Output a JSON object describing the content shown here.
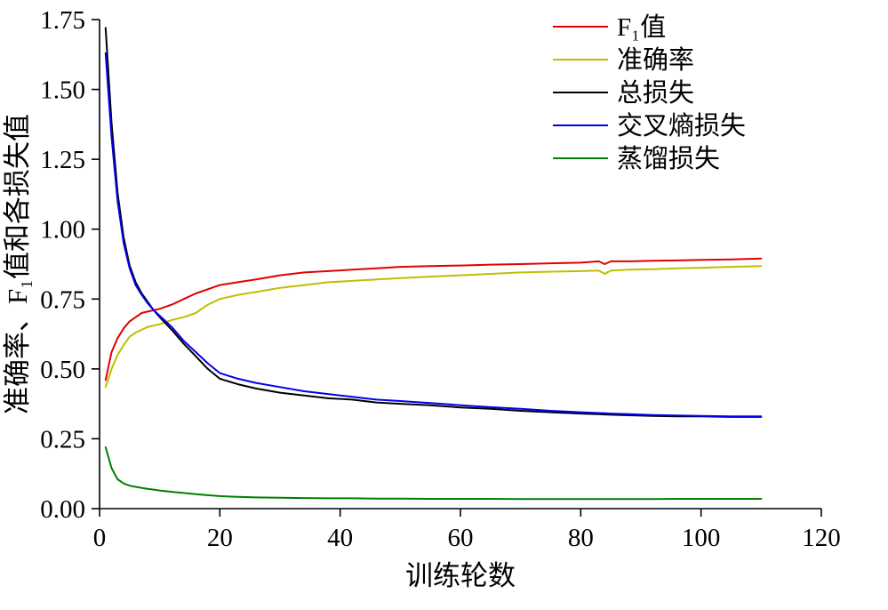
{
  "chart_data": {
    "type": "line",
    "title": "",
    "xlabel": "训练轮数",
    "ylabel": "准确率、F₁值和各损失值",
    "xlim": [
      0,
      120
    ],
    "ylim": [
      0,
      1.75
    ],
    "x_ticks": [
      0,
      20,
      40,
      60,
      80,
      100,
      120
    ],
    "y_ticks": [
      0.0,
      0.25,
      0.5,
      0.75,
      1.0,
      1.25,
      1.5,
      1.75
    ],
    "grid": false,
    "legend_position": "upper right, no frame",
    "x": [
      1,
      2,
      3,
      4,
      5,
      6,
      7,
      8,
      9,
      10,
      12,
      14,
      16,
      18,
      20,
      23,
      26,
      30,
      34,
      38,
      42,
      46,
      50,
      55,
      60,
      65,
      70,
      75,
      80,
      83,
      84,
      85,
      88,
      92,
      96,
      100,
      105,
      110
    ],
    "series": [
      {
        "id": "f1",
        "name": "F₁值",
        "color": "#e00000",
        "values": [
          0.46,
          0.56,
          0.61,
          0.645,
          0.67,
          0.685,
          0.7,
          0.705,
          0.71,
          0.715,
          0.73,
          0.75,
          0.77,
          0.785,
          0.8,
          0.81,
          0.82,
          0.835,
          0.845,
          0.85,
          0.855,
          0.86,
          0.865,
          0.868,
          0.87,
          0.873,
          0.875,
          0.878,
          0.88,
          0.885,
          0.875,
          0.885,
          0.885,
          0.887,
          0.888,
          0.89,
          0.892,
          0.895
        ]
      },
      {
        "id": "accuracy",
        "name": "准确率",
        "color": "#bfbf00",
        "values": [
          0.435,
          0.5,
          0.55,
          0.585,
          0.615,
          0.63,
          0.64,
          0.65,
          0.655,
          0.66,
          0.675,
          0.685,
          0.7,
          0.73,
          0.75,
          0.765,
          0.775,
          0.79,
          0.8,
          0.81,
          0.815,
          0.82,
          0.825,
          0.83,
          0.835,
          0.84,
          0.845,
          0.848,
          0.85,
          0.852,
          0.84,
          0.852,
          0.855,
          0.857,
          0.86,
          0.862,
          0.865,
          0.868
        ]
      },
      {
        "id": "total-loss",
        "name": "总损失",
        "color": "#000000",
        "values": [
          1.72,
          1.38,
          1.13,
          0.97,
          0.87,
          0.81,
          0.77,
          0.74,
          0.71,
          0.685,
          0.64,
          0.59,
          0.545,
          0.5,
          0.465,
          0.445,
          0.43,
          0.415,
          0.405,
          0.395,
          0.39,
          0.38,
          0.375,
          0.37,
          0.362,
          0.357,
          0.35,
          0.345,
          0.34,
          0.338,
          0.337,
          0.336,
          0.334,
          0.332,
          0.33,
          0.33,
          0.328,
          0.328
        ]
      },
      {
        "id": "cross-entropy-loss",
        "name": "交叉熵损失",
        "color": "#0000ee",
        "values": [
          1.63,
          1.33,
          1.1,
          0.95,
          0.86,
          0.8,
          0.765,
          0.735,
          0.71,
          0.69,
          0.65,
          0.6,
          0.56,
          0.52,
          0.485,
          0.465,
          0.45,
          0.435,
          0.42,
          0.41,
          0.4,
          0.39,
          0.385,
          0.378,
          0.37,
          0.363,
          0.357,
          0.35,
          0.345,
          0.342,
          0.341,
          0.34,
          0.338,
          0.335,
          0.333,
          0.332,
          0.33,
          0.33
        ]
      },
      {
        "id": "distillation-loss",
        "name": "蒸馏损失",
        "color": "#007f00",
        "values": [
          0.22,
          0.145,
          0.105,
          0.09,
          0.082,
          0.078,
          0.074,
          0.071,
          0.068,
          0.065,
          0.06,
          0.056,
          0.052,
          0.048,
          0.045,
          0.042,
          0.04,
          0.039,
          0.038,
          0.037,
          0.037,
          0.036,
          0.036,
          0.035,
          0.035,
          0.035,
          0.034,
          0.034,
          0.034,
          0.034,
          0.034,
          0.034,
          0.034,
          0.034,
          0.035,
          0.035,
          0.035,
          0.035
        ]
      }
    ]
  }
}
